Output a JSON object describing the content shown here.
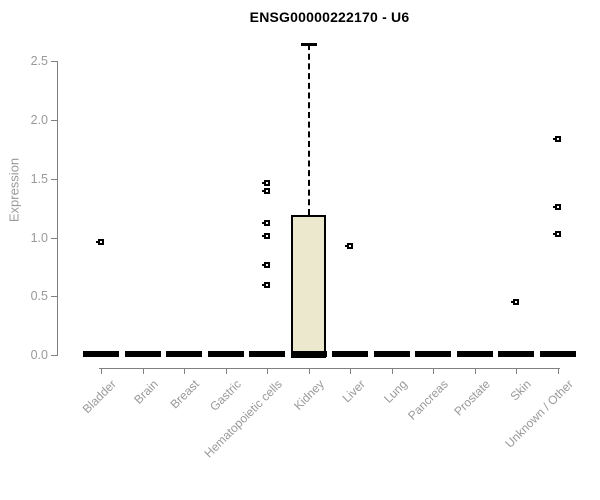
{
  "chart_data": {
    "type": "boxplot",
    "title": "ENSG00000222170 - U6",
    "xlabel": "",
    "ylabel": "Expression",
    "ylim": [
      0.0,
      2.5
    ],
    "yticks": [
      0.0,
      0.5,
      1.0,
      1.5,
      2.0,
      2.5
    ],
    "grid": false,
    "legend": "none",
    "categories": [
      "Bladder",
      "Brain",
      "Breast",
      "Gastric",
      "Hematopoietic cells",
      "Kidney",
      "Liver",
      "Lung",
      "Pancreas",
      "Prostate",
      "Skin",
      "Unknown / Other"
    ],
    "boxes": [
      {
        "category": "Bladder",
        "min": 0,
        "q1": 0,
        "median": 0,
        "q3": 0,
        "max": 0,
        "outliers": [
          0.96
        ]
      },
      {
        "category": "Brain",
        "min": 0,
        "q1": 0,
        "median": 0,
        "q3": 0,
        "max": 0,
        "outliers": []
      },
      {
        "category": "Breast",
        "min": 0,
        "q1": 0,
        "median": 0,
        "q3": 0,
        "max": 0,
        "outliers": []
      },
      {
        "category": "Gastric",
        "min": 0,
        "q1": 0,
        "median": 0,
        "q3": 0,
        "max": 0,
        "outliers": []
      },
      {
        "category": "Hematopoietic cells",
        "min": 0,
        "q1": 0,
        "median": 0,
        "q3": 0,
        "max": 0,
        "outliers": [
          1.46,
          1.4,
          1.12,
          1.01,
          0.77,
          0.6
        ]
      },
      {
        "category": "Kidney",
        "min": 0,
        "q1": 0,
        "median": 0,
        "q3": 1.18,
        "max": 2.65,
        "outliers": []
      },
      {
        "category": "Liver",
        "min": 0,
        "q1": 0,
        "median": 0,
        "q3": 0,
        "max": 0,
        "outliers": [
          0.93
        ]
      },
      {
        "category": "Lung",
        "min": 0,
        "q1": 0,
        "median": 0,
        "q3": 0,
        "max": 0,
        "outliers": []
      },
      {
        "category": "Pancreas",
        "min": 0,
        "q1": 0,
        "median": 0,
        "q3": 0,
        "max": 0,
        "outliers": []
      },
      {
        "category": "Prostate",
        "min": 0,
        "q1": 0,
        "median": 0,
        "q3": 0,
        "max": 0,
        "outliers": []
      },
      {
        "category": "Skin",
        "min": 0,
        "q1": 0,
        "median": 0,
        "q3": 0,
        "max": 0,
        "outliers": [
          0.45
        ]
      },
      {
        "category": "Unknown / Other",
        "min": 0,
        "q1": 0,
        "median": 0,
        "q3": 0,
        "max": 0,
        "outliers": [
          1.84,
          1.26,
          1.03
        ]
      }
    ],
    "style": {
      "box_fill": "#ece8cd",
      "box_border": "#000000",
      "outlier_color": "#000000",
      "axis_color": "#808080",
      "tick_label_color": "#999999",
      "title_color": "#000000",
      "background": "#ffffff"
    }
  }
}
